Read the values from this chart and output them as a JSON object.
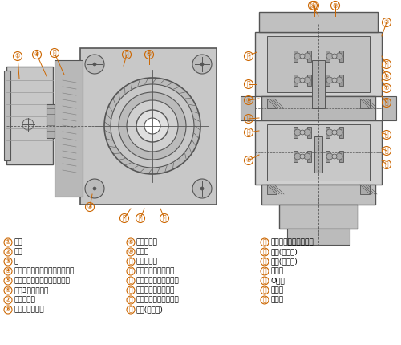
{
  "background_color": "#ffffff",
  "legend_col1": [
    [
      "①",
      "电机"
    ],
    [
      "②",
      "筱体"
    ],
    [
      "③",
      "盖"
    ],
    [
      "④",
      "电机小齿轮（准双曲面小齿轮）"
    ],
    [
      "⑤",
      "第一段齿轮（准双曲面齿轮）"
    ],
    [
      "⑥",
      "带第3轴的小齿轮"
    ],
    [
      "⑦",
      "第二段齿轮"
    ],
    [
      "⑧",
      "第三轴带小齿轮"
    ]
  ],
  "legend_col2": [
    [
      "⑨",
      "第三段齿轮"
    ],
    [
      "⑩",
      "输出轴"
    ],
    [
      "⑪",
      "空心轴输出"
    ],
    [
      "⑫",
      "轴承（第二轴盖端）"
    ],
    [
      "⑬",
      "轴承（第二轴筱体端）"
    ],
    [
      "⑭",
      "轴承（第三轴盖端）"
    ],
    [
      "⑮",
      "轴承（第三轴筱体端）"
    ],
    [
      "⑯",
      "轴承(输出轴)"
    ]
  ],
  "legend_col3": [
    [
      "Ⓐ",
      "轴承（电机轴负载端）"
    ],
    [
      "Ⓑ",
      "油封(输出端)"
    ],
    [
      "Ⓒ",
      "油封(电机轴)"
    ],
    [
      "Ⓓ",
      "密封盖"
    ],
    [
      "Ⓔ",
      "O形环"
    ],
    [
      "Ⓕ",
      "过滤器"
    ],
    [
      "Ⓖ",
      "密封件"
    ]
  ],
  "font_size": 6.5,
  "circle_font_size": 5.5,
  "anno_color": "#cc6600",
  "draw_color": "#555555",
  "fill_color": "#c8c8c8",
  "fill_dark": "#aaaaaa",
  "fill_light": "#e0e0e0"
}
